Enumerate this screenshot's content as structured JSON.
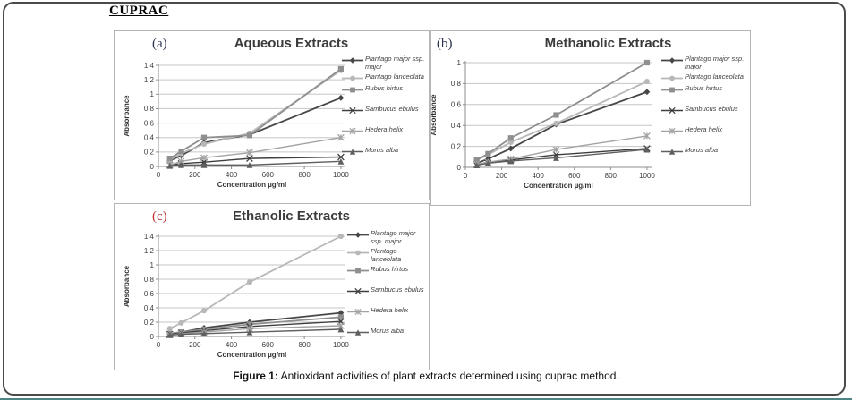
{
  "page": {
    "heading": "CUPRAC",
    "caption_label": "Figure 1:",
    "caption_text": " Antioxidant activities of plant extracts determined using cuprac method.",
    "accent_teal": "#4e8584"
  },
  "chart_data": [
    {
      "type": "line",
      "panel_letter": "(a)",
      "letter_color": "#2a3550",
      "title": "Aqueous Extracts",
      "xlabel": "Concentration µg/ml",
      "ylabel": "Absorbance",
      "x": [
        62.5,
        125,
        250,
        500,
        1000
      ],
      "xlim": [
        0,
        1025
      ],
      "xticks": [
        0,
        200,
        400,
        600,
        800,
        1000
      ],
      "ylim": [
        0,
        1.4
      ],
      "ytick_values": [
        0,
        0.2,
        0.4,
        0.6,
        0.8,
        1,
        1.2,
        1.4
      ],
      "ytick_labels": [
        "0",
        "0,2",
        "0,4",
        "0,6",
        "0,8",
        "1",
        "1,2",
        "1,4"
      ],
      "grid": "horizontal",
      "legend_position": "right",
      "box": {
        "l": 49,
        "r": 258,
        "t": 38,
        "b": 151
      },
      "series": [
        {
          "name": "Plantago major ssp. major",
          "marker": "diamond",
          "color": "#474747",
          "values": [
            0.08,
            0.15,
            0.33,
            0.44,
            0.95
          ]
        },
        {
          "name": "Plantago lanceolata",
          "marker": "circle",
          "color": "#b8b8b8",
          "values": [
            0.09,
            0.18,
            0.31,
            0.46,
            1.33
          ]
        },
        {
          "name": "Rubus hirtus",
          "marker": "square",
          "color": "#8f8f8f",
          "values": [
            0.11,
            0.21,
            0.4,
            0.43,
            1.35
          ]
        },
        {
          "name": "Sambucus ebulus",
          "marker": "x",
          "color": "#3f3f3f",
          "values": [
            0.02,
            0.04,
            0.06,
            0.11,
            0.13
          ]
        },
        {
          "name": "Hedera helix",
          "marker": "star",
          "color": "#a3a3a3",
          "values": [
            0.02,
            0.07,
            0.12,
            0.19,
            0.4
          ]
        },
        {
          "name": "Morus alba",
          "marker": "triangle",
          "color": "#5f5f5f",
          "values": [
            0.01,
            0.02,
            0.02,
            0.02,
            0.07
          ]
        }
      ]
    },
    {
      "type": "line",
      "panel_letter": "(b)",
      "letter_color": "#2a3550",
      "title": "Methanolic Extracts",
      "xlabel": "Concentration µg/ml",
      "ylabel": "Absorbance",
      "x": [
        62.5,
        125,
        250,
        500,
        1000
      ],
      "xlim": [
        0,
        1025
      ],
      "xticks": [
        0,
        200,
        400,
        600,
        800,
        1000
      ],
      "ylim": [
        0,
        1
      ],
      "ytick_values": [
        0,
        0.2,
        0.4,
        0.6,
        0.8,
        1
      ],
      "ytick_labels": [
        "0",
        "0,2",
        "0,4",
        "0,6",
        "0,8",
        "1"
      ],
      "grid": "horizontal",
      "legend_position": "right",
      "box": {
        "l": 38,
        "r": 246,
        "t": 35,
        "b": 152
      },
      "series": [
        {
          "name": "Plantago major ssp. major",
          "marker": "diamond",
          "color": "#474747",
          "values": [
            0.04,
            0.08,
            0.18,
            0.41,
            0.72
          ]
        },
        {
          "name": "Plantago lanceolata",
          "marker": "circle",
          "color": "#b8b8b8",
          "values": [
            0.07,
            0.12,
            0.24,
            0.42,
            0.82
          ]
        },
        {
          "name": "Rubus hirtus",
          "marker": "square",
          "color": "#8f8f8f",
          "values": [
            0.07,
            0.13,
            0.28,
            0.5,
            1.0
          ]
        },
        {
          "name": "Sambucus ebulus",
          "marker": "x",
          "color": "#3f3f3f",
          "values": [
            0.03,
            0.04,
            0.07,
            0.12,
            0.18
          ]
        },
        {
          "name": "Hedera helix",
          "marker": "star",
          "color": "#a3a3a3",
          "values": [
            0.03,
            0.05,
            0.08,
            0.17,
            0.3
          ]
        },
        {
          "name": "Morus alba",
          "marker": "triangle",
          "color": "#5f5f5f",
          "values": [
            0.02,
            0.04,
            0.06,
            0.09,
            0.17
          ]
        }
      ]
    },
    {
      "type": "line",
      "panel_letter": "(c)",
      "letter_color": "#c03030",
      "title": "Ethanolic Extracts",
      "xlabel": "Concentration µg/ml",
      "ylabel": "Absorbance",
      "x": [
        62.5,
        125,
        250,
        500,
        1000
      ],
      "xlim": [
        0,
        1025
      ],
      "xticks": [
        0,
        200,
        400,
        600,
        800,
        1000
      ],
      "ylim": [
        0,
        1.4
      ],
      "ytick_values": [
        0,
        0.2,
        0.4,
        0.6,
        0.8,
        1,
        1.2,
        1.4
      ],
      "ytick_labels": [
        "0",
        "0,2",
        "0,4",
        "0,6",
        "0,8",
        "1",
        "1,2",
        "1,4"
      ],
      "grid": "horizontal",
      "legend_position": "right",
      "box": {
        "l": 49,
        "r": 258,
        "t": 36,
        "b": 148
      },
      "series": [
        {
          "name": "Plantago major ssp. major",
          "marker": "diamond",
          "color": "#474747",
          "values": [
            0.03,
            0.06,
            0.12,
            0.2,
            0.33
          ]
        },
        {
          "name": "Plantago lanceolata",
          "marker": "circle",
          "color": "#b8b8b8",
          "values": [
            0.11,
            0.19,
            0.36,
            0.76,
            1.4
          ]
        },
        {
          "name": "Rubus hirtus",
          "marker": "square",
          "color": "#8f8f8f",
          "values": [
            0.04,
            0.06,
            0.1,
            0.17,
            0.27
          ]
        },
        {
          "name": "Sambucus ebulus",
          "marker": "x",
          "color": "#3f3f3f",
          "values": [
            0.03,
            0.05,
            0.08,
            0.14,
            0.21
          ]
        },
        {
          "name": "Hedera helix",
          "marker": "star",
          "color": "#a3a3a3",
          "values": [
            0.02,
            0.04,
            0.06,
            0.11,
            0.15
          ]
        },
        {
          "name": "Morus alba",
          "marker": "triangle",
          "color": "#5f5f5f",
          "values": [
            0.02,
            0.03,
            0.04,
            0.06,
            0.1
          ]
        }
      ]
    }
  ]
}
